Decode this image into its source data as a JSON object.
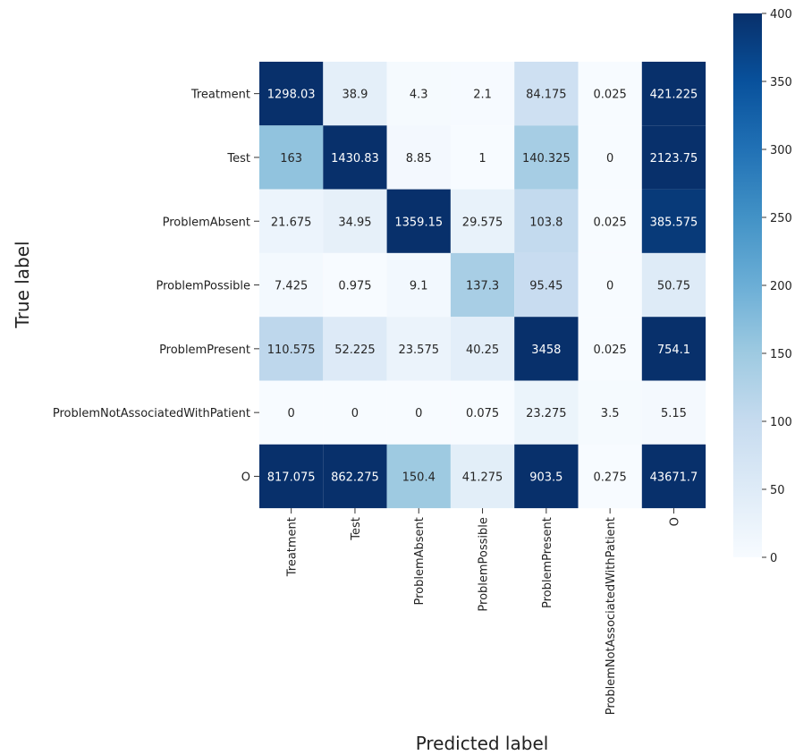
{
  "chart_data": {
    "type": "heatmap",
    "title": "",
    "xlabel": "Predicted label",
    "ylabel": "True label",
    "row_labels": [
      "Treatment",
      "Test",
      "ProblemAbsent",
      "ProblemPossible",
      "ProblemPresent",
      "ProblemNotAssociatedWithPatient",
      "O"
    ],
    "col_labels": [
      "Treatment",
      "Test",
      "ProblemAbsent",
      "ProblemPossible",
      "ProblemPresent",
      "ProblemNotAssociatedWithPatient",
      "O"
    ],
    "values": [
      [
        1298.03,
        38.9,
        4.3,
        2.1,
        84.175,
        0.025,
        421.225
      ],
      [
        163,
        1430.83,
        8.85,
        1,
        140.325,
        0,
        2123.75
      ],
      [
        21.675,
        34.95,
        1359.15,
        29.575,
        103.8,
        0.025,
        385.575
      ],
      [
        7.425,
        0.975,
        9.1,
        137.3,
        95.45,
        0,
        50.75
      ],
      [
        110.575,
        52.225,
        23.575,
        40.25,
        3458,
        0.025,
        754.1
      ],
      [
        0,
        0,
        0,
        0.075,
        23.275,
        3.5,
        5.15
      ],
      [
        817.075,
        862.275,
        150.4,
        41.275,
        903.5,
        0.275,
        43671.7
      ]
    ],
    "cell_text": [
      [
        "1298.03",
        "38.9",
        "4.3",
        "2.1",
        "84.175",
        "0.025",
        "421.225"
      ],
      [
        "163",
        "1430.83",
        "8.85",
        "1",
        "140.325",
        "0",
        "2123.75"
      ],
      [
        "21.675",
        "34.95",
        "1359.15",
        "29.575",
        "103.8",
        "0.025",
        "385.575"
      ],
      [
        "7.425",
        "0.975",
        "9.1",
        "137.3",
        "95.45",
        "0",
        "50.75"
      ],
      [
        "110.575",
        "52.225",
        "23.575",
        "40.25",
        "3458",
        "0.025",
        "754.1"
      ],
      [
        "0",
        "0",
        "0",
        "0.075",
        "23.275",
        "3.5",
        "5.15"
      ],
      [
        "817.075",
        "862.275",
        "150.4",
        "41.275",
        "903.5",
        "0.275",
        "43671.7"
      ]
    ],
    "colorbar": {
      "vmin": 0,
      "vmax": 400,
      "ticks": [
        0,
        50,
        100,
        150,
        200,
        250,
        300,
        350,
        400
      ],
      "colormap": "Blues"
    },
    "grid": false,
    "legend": "colorbar-right"
  }
}
